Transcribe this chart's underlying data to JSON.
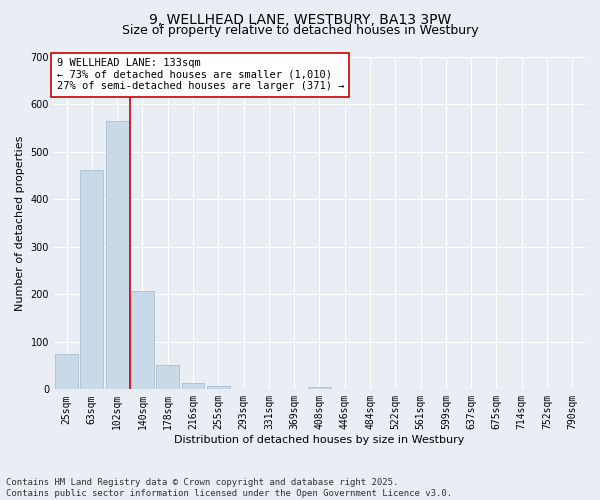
{
  "title_line1": "9, WELLHEAD LANE, WESTBURY, BA13 3PW",
  "title_line2": "Size of property relative to detached houses in Westbury",
  "xlabel": "Distribution of detached houses by size in Westbury",
  "ylabel": "Number of detached properties",
  "categories": [
    "25sqm",
    "63sqm",
    "102sqm",
    "140sqm",
    "178sqm",
    "216sqm",
    "255sqm",
    "293sqm",
    "331sqm",
    "369sqm",
    "408sqm",
    "446sqm",
    "484sqm",
    "522sqm",
    "561sqm",
    "599sqm",
    "637sqm",
    "675sqm",
    "714sqm",
    "752sqm",
    "790sqm"
  ],
  "values": [
    75,
    462,
    565,
    207,
    52,
    14,
    7,
    1,
    0,
    0,
    4,
    0,
    0,
    0,
    0,
    0,
    0,
    0,
    0,
    0,
    0
  ],
  "bar_color": "#c8d9e8",
  "bar_edge_color": "#a0b8cc",
  "vline_x_index": 2,
  "vline_color": "#cc0000",
  "annotation_text": "9 WELLHEAD LANE: 133sqm\n← 73% of detached houses are smaller (1,010)\n27% of semi-detached houses are larger (371) →",
  "annotation_box_color": "#ffffff",
  "annotation_box_edge": "#cc0000",
  "ylim": [
    0,
    700
  ],
  "yticks": [
    0,
    100,
    200,
    300,
    400,
    500,
    600,
    700
  ],
  "background_color": "#e8eef4",
  "plot_bg_color": "#e8eef4",
  "footer_text": "Contains HM Land Registry data © Crown copyright and database right 2025.\nContains public sector information licensed under the Open Government Licence v3.0.",
  "title_fontsize": 10,
  "subtitle_fontsize": 9,
  "axis_label_fontsize": 8,
  "tick_fontsize": 7,
  "annotation_fontsize": 7.5,
  "footer_fontsize": 6.5
}
